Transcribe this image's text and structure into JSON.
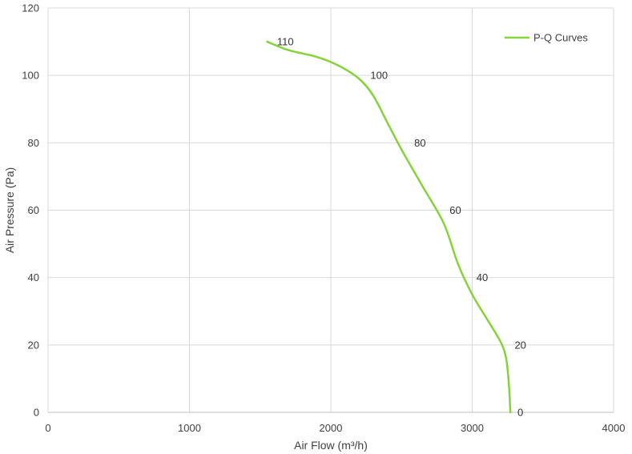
{
  "chart_data": {
    "type": "line",
    "title": "",
    "xlabel": "Air Flow  (m³/h)",
    "ylabel": "Air Pressure  (Pa)",
    "xlim": [
      0,
      4000
    ],
    "ylim": [
      0,
      120
    ],
    "xticks": [
      0,
      1000,
      2000,
      3000,
      4000
    ],
    "yticks": [
      0,
      20,
      40,
      60,
      80,
      100,
      120
    ],
    "grid": true,
    "legend_position": "top-right",
    "series": [
      {
        "name": "P-Q Curves",
        "color": "#86d23a",
        "x": [
          1550,
          1700,
          1900,
          2050,
          2200,
          2300,
          2400,
          2500,
          2650,
          2800,
          2900,
          3000,
          3100,
          3200,
          3240,
          3260,
          3270
        ],
        "y": [
          110,
          107.5,
          105.5,
          103,
          99,
          94,
          86,
          78,
          67,
          56,
          44,
          35,
          28,
          21,
          16,
          8,
          0
        ]
      }
    ],
    "annotations": [
      {
        "text": "110",
        "x": 1620,
        "y": 110
      },
      {
        "text": "100",
        "x": 2280,
        "y": 100
      },
      {
        "text": "80",
        "x": 2590,
        "y": 80
      },
      {
        "text": "60",
        "x": 2840,
        "y": 60
      },
      {
        "text": "40",
        "x": 3030,
        "y": 40
      },
      {
        "text": "20",
        "x": 3300,
        "y": 20
      },
      {
        "text": "0",
        "x": 3320,
        "y": 0
      }
    ]
  }
}
